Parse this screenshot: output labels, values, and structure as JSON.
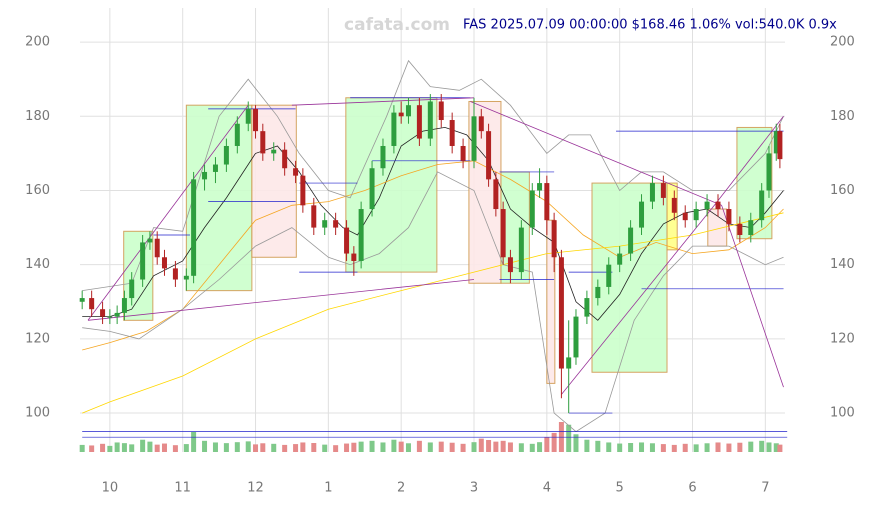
{
  "chart_data": {
    "type": "candlestick",
    "title": "FAS 2025.07.09 00:00:00 $168.46 1.06% vol:540.0K 0.9x",
    "watermark": "cafata.com",
    "xlim": [
      9.59,
      19.27
    ],
    "ylim": [
      89.5,
      209.2
    ],
    "xticks": [
      {
        "value": 10,
        "label": "10"
      },
      {
        "value": 11,
        "label": "11"
      },
      {
        "value": 12,
        "label": "12"
      },
      {
        "value": 13,
        "label": "1"
      },
      {
        "value": 14,
        "label": "2"
      },
      {
        "value": 15,
        "label": "3"
      },
      {
        "value": 16,
        "label": "4"
      },
      {
        "value": 17,
        "label": "5"
      },
      {
        "value": 18,
        "label": "6"
      },
      {
        "value": 19,
        "label": "7"
      }
    ],
    "yticks": [
      100,
      120,
      140,
      160,
      180,
      200
    ],
    "grid": true,
    "up_color": "#2e9e3e",
    "down_color": "#b22222",
    "candles": {
      "x": [
        9.62,
        9.75,
        9.9,
        10.0,
        10.1,
        10.2,
        10.3,
        10.45,
        10.55,
        10.65,
        10.75,
        10.9,
        11.05,
        11.15,
        11.3,
        11.45,
        11.6,
        11.75,
        11.9,
        12.0,
        12.1,
        12.25,
        12.4,
        12.55,
        12.65,
        12.8,
        12.95,
        13.1,
        13.25,
        13.35,
        13.45,
        13.6,
        13.75,
        13.9,
        14.0,
        14.1,
        14.25,
        14.4,
        14.55,
        14.7,
        14.85,
        15.0,
        15.1,
        15.2,
        15.3,
        15.4,
        15.5,
        15.65,
        15.8,
        15.9,
        16.0,
        16.1,
        16.2,
        16.3,
        16.4,
        16.55,
        16.7,
        16.85,
        17.0,
        17.15,
        17.3,
        17.45,
        17.6,
        17.75,
        17.9,
        18.05,
        18.2,
        18.35,
        18.5,
        18.65,
        18.8,
        18.95,
        19.05,
        19.15,
        19.2
      ],
      "open": [
        130,
        131,
        128,
        126,
        126,
        127,
        131,
        136,
        146,
        147,
        142,
        139,
        136,
        137,
        163,
        165,
        167,
        172,
        178,
        182,
        176,
        170,
        171,
        166,
        164,
        156,
        150,
        152,
        150,
        143,
        141,
        155,
        166,
        172,
        181,
        180,
        183,
        174,
        184,
        179,
        172,
        168,
        180,
        176,
        163,
        155,
        142,
        138,
        150,
        160,
        162,
        152,
        142,
        112,
        115,
        126,
        131,
        134,
        140,
        143,
        150,
        157,
        162,
        158,
        154,
        152,
        155,
        157,
        155,
        151,
        148,
        152,
        160,
        170,
        176
      ],
      "high": [
        133,
        133,
        130,
        128,
        129,
        133,
        138,
        148,
        149,
        149,
        144,
        141,
        139,
        165,
        167,
        169,
        174,
        180,
        184,
        183,
        178,
        173,
        173,
        168,
        166,
        158,
        154,
        154,
        152,
        145,
        157,
        168,
        174,
        183,
        184,
        185,
        185,
        186,
        186,
        181,
        174,
        185,
        182,
        178,
        165,
        157,
        144,
        152,
        162,
        166,
        164,
        154,
        144,
        125,
        128,
        133,
        136,
        142,
        145,
        152,
        159,
        164,
        164,
        160,
        156,
        157,
        159,
        159,
        157,
        153,
        154,
        162,
        172,
        178,
        178
      ],
      "low": [
        128,
        126,
        124,
        124,
        124,
        125,
        129,
        134,
        144,
        140,
        137,
        134,
        133,
        135,
        160,
        162,
        165,
        170,
        176,
        174,
        168,
        168,
        164,
        162,
        154,
        148,
        148,
        148,
        141,
        137,
        139,
        153,
        164,
        170,
        178,
        178,
        172,
        172,
        177,
        170,
        166,
        166,
        174,
        161,
        153,
        140,
        135,
        136,
        148,
        158,
        148,
        138,
        104,
        100,
        113,
        124,
        129,
        132,
        138,
        141,
        148,
        155,
        156,
        152,
        150,
        150,
        153,
        153,
        149,
        146,
        146,
        150,
        158,
        168,
        166
      ],
      "close": [
        131,
        128,
        126,
        126,
        127,
        131,
        136,
        146,
        147,
        142,
        139,
        136,
        137,
        163,
        165,
        167,
        172,
        178,
        182,
        176,
        170,
        171,
        166,
        164,
        156,
        150,
        152,
        150,
        143,
        141,
        155,
        166,
        172,
        181,
        180,
        183,
        174,
        184,
        179,
        172,
        168,
        180,
        176,
        163,
        155,
        142,
        138,
        150,
        160,
        162,
        152,
        142,
        112,
        115,
        126,
        131,
        134,
        140,
        143,
        150,
        157,
        162,
        158,
        154,
        152,
        155,
        157,
        155,
        151,
        148,
        152,
        160,
        170,
        176,
        168.46
      ],
      "volume": [
        520,
        480,
        600,
        450,
        700,
        650,
        560,
        900,
        760,
        540,
        620,
        500,
        580,
        1500,
        820,
        700,
        650,
        720,
        780,
        560,
        640,
        600,
        520,
        580,
        700,
        660,
        540,
        500,
        620,
        680,
        760,
        820,
        700,
        900,
        760,
        640,
        820,
        700,
        760,
        680,
        600,
        720,
        980,
        880,
        760,
        820,
        700,
        640,
        600,
        720,
        1100,
        1400,
        2200,
        2000,
        1300,
        900,
        820,
        700,
        620,
        660,
        700,
        640,
        580,
        520,
        600,
        560,
        640,
        700,
        620,
        680,
        760,
        820,
        700,
        640,
        540
      ]
    },
    "lines": [
      {
        "color": "#222222",
        "x": [
          9.62,
          10.0,
          10.3,
          10.6,
          11.0,
          11.3,
          11.6,
          12.0,
          12.3,
          12.6,
          12.9,
          13.2,
          13.4,
          13.7,
          14.0,
          14.3,
          14.6,
          14.9,
          15.2,
          15.5,
          15.8,
          16.1,
          16.4,
          16.7,
          17.0,
          17.3,
          17.6,
          17.9,
          18.2,
          18.5,
          18.8,
          19.0,
          19.25
        ],
        "values": [
          126,
          126,
          128,
          137,
          141,
          150,
          158,
          170,
          172,
          165,
          156,
          150,
          148,
          158,
          172,
          176,
          177,
          175,
          168,
          155,
          150,
          146,
          130,
          125,
          132,
          143,
          151,
          154,
          155,
          151,
          150,
          154,
          160
        ]
      },
      {
        "color": "#f5a623",
        "x": [
          9.62,
          10.0,
          10.5,
          11.0,
          11.5,
          12.0,
          12.5,
          13.0,
          13.5,
          14.0,
          14.5,
          15.0,
          15.5,
          16.0,
          16.5,
          17.0,
          17.5,
          18.0,
          18.5,
          19.0,
          19.25
        ],
        "values": [
          117,
          119,
          122,
          128,
          140,
          152,
          156,
          157,
          160,
          164,
          167,
          168,
          163,
          157,
          148,
          142,
          146,
          143,
          144,
          150,
          155
        ]
      },
      {
        "color": "#ffd700",
        "x": [
          9.62,
          10.0,
          11.0,
          12.0,
          13.0,
          14.0,
          15.0,
          16.0,
          17.0,
          18.0,
          19.25
        ],
        "values": [
          100,
          103,
          110,
          120,
          128,
          133,
          138,
          143,
          145,
          148,
          154
        ]
      },
      {
        "color": "#999999",
        "x": [
          9.62,
          10.3,
          10.6,
          11.0,
          11.5,
          11.9,
          12.3,
          12.6,
          13.0,
          13.3,
          13.8,
          14.1,
          14.4,
          14.8,
          15.1,
          15.5,
          16.0,
          16.3,
          16.6,
          17.0,
          17.3,
          17.6,
          18.0,
          18.5,
          19.0,
          19.25
        ],
        "values": [
          133,
          135,
          150,
          149,
          180,
          190,
          180,
          170,
          160,
          158,
          180,
          195,
          188,
          187,
          190,
          183,
          170,
          175,
          175,
          160,
          165,
          165,
          160,
          160,
          170,
          180
        ]
      },
      {
        "color": "#999999",
        "x": [
          9.62,
          10.0,
          10.4,
          11.0,
          11.5,
          12.0,
          12.5,
          13.0,
          13.3,
          13.7,
          14.1,
          14.5,
          15.0,
          15.4,
          15.8,
          16.1,
          16.4,
          16.8,
          17.2,
          17.6,
          18.0,
          18.5,
          19.0,
          19.25
        ],
        "values": [
          123,
          122,
          120,
          128,
          136,
          145,
          150,
          142,
          140,
          143,
          150,
          165,
          160,
          140,
          138,
          100,
          95,
          100,
          125,
          137,
          145,
          145,
          140,
          142
        ]
      }
    ],
    "boxes": [
      {
        "x0": 10.19,
        "x1": 10.59,
        "y0": 125,
        "y1": 149,
        "color": "#ccffcc"
      },
      {
        "x0": 11.05,
        "x1": 11.95,
        "y0": 133,
        "y1": 183,
        "color": "#ccffcc"
      },
      {
        "x0": 11.95,
        "x1": 12.56,
        "y0": 142,
        "y1": 183,
        "color": "#fde8e8"
      },
      {
        "x0": 13.24,
        "x1": 14.49,
        "y0": 138,
        "y1": 185,
        "color": "#ccffcc"
      },
      {
        "x0": 14.93,
        "x1": 15.37,
        "y0": 135,
        "y1": 184,
        "color": "#fde8e8"
      },
      {
        "x0": 15.37,
        "x1": 15.76,
        "y0": 135,
        "y1": 165,
        "color": "#ccffcc"
      },
      {
        "x0": 16.0,
        "x1": 16.11,
        "y0": 108,
        "y1": 152,
        "color": "#fde8e8"
      },
      {
        "x0": 16.62,
        "x1": 17.65,
        "y0": 111,
        "y1": 162,
        "color": "#ccffcc"
      },
      {
        "x0": 17.65,
        "x1": 17.79,
        "y0": 144,
        "y1": 162,
        "color": "#ffff88"
      },
      {
        "x0": 18.21,
        "x1": 18.47,
        "y0": 145,
        "y1": 155,
        "color": "#fde8e8"
      },
      {
        "x0": 18.61,
        "x1": 19.09,
        "y0": 147,
        "y1": 177,
        "color": "#ccffcc"
      }
    ],
    "levels": [
      {
        "x0": 10.6,
        "x1": 11.1,
        "y": 148
      },
      {
        "x0": 11.35,
        "x1": 12.55,
        "y": 182
      },
      {
        "x0": 11.35,
        "x1": 12.55,
        "y": 157
      },
      {
        "x0": 12.6,
        "x1": 13.4,
        "y": 162
      },
      {
        "x0": 12.6,
        "x1": 13.4,
        "y": 138
      },
      {
        "x0": 13.3,
        "x1": 14.95,
        "y": 185
      },
      {
        "x0": 13.6,
        "x1": 14.95,
        "y": 168
      },
      {
        "x0": 15.35,
        "x1": 16.1,
        "y": 165
      },
      {
        "x0": 15.35,
        "x1": 16.1,
        "y": 136
      },
      {
        "x0": 16.3,
        "x1": 16.9,
        "y": 138
      },
      {
        "x0": 16.3,
        "x1": 16.9,
        "y": 100
      },
      {
        "x0": 16.95,
        "x1": 19.25,
        "y": 176
      },
      {
        "x0": 17.3,
        "x1": 19.25,
        "y": 133.5
      },
      {
        "x0": 9.62,
        "x1": 19.3,
        "y": 95
      },
      {
        "x0": 9.62,
        "x1": 19.3,
        "y": 93.5
      }
    ],
    "trend_lines": [
      {
        "x": [
          9.7,
          11.9
        ],
        "y": [
          125,
          183
        ]
      },
      {
        "x": [
          9.7,
          15.0
        ],
        "y": [
          125,
          136
        ]
      },
      {
        "x": [
          12.5,
          15.0
        ],
        "y": [
          183,
          185
        ]
      },
      {
        "x": [
          14.95,
          18.4,
          19.25
        ],
        "y": [
          184,
          156,
          107
        ]
      },
      {
        "x": [
          16.2,
          18.3,
          19.25
        ],
        "y": [
          105,
          156,
          180
        ]
      }
    ]
  }
}
